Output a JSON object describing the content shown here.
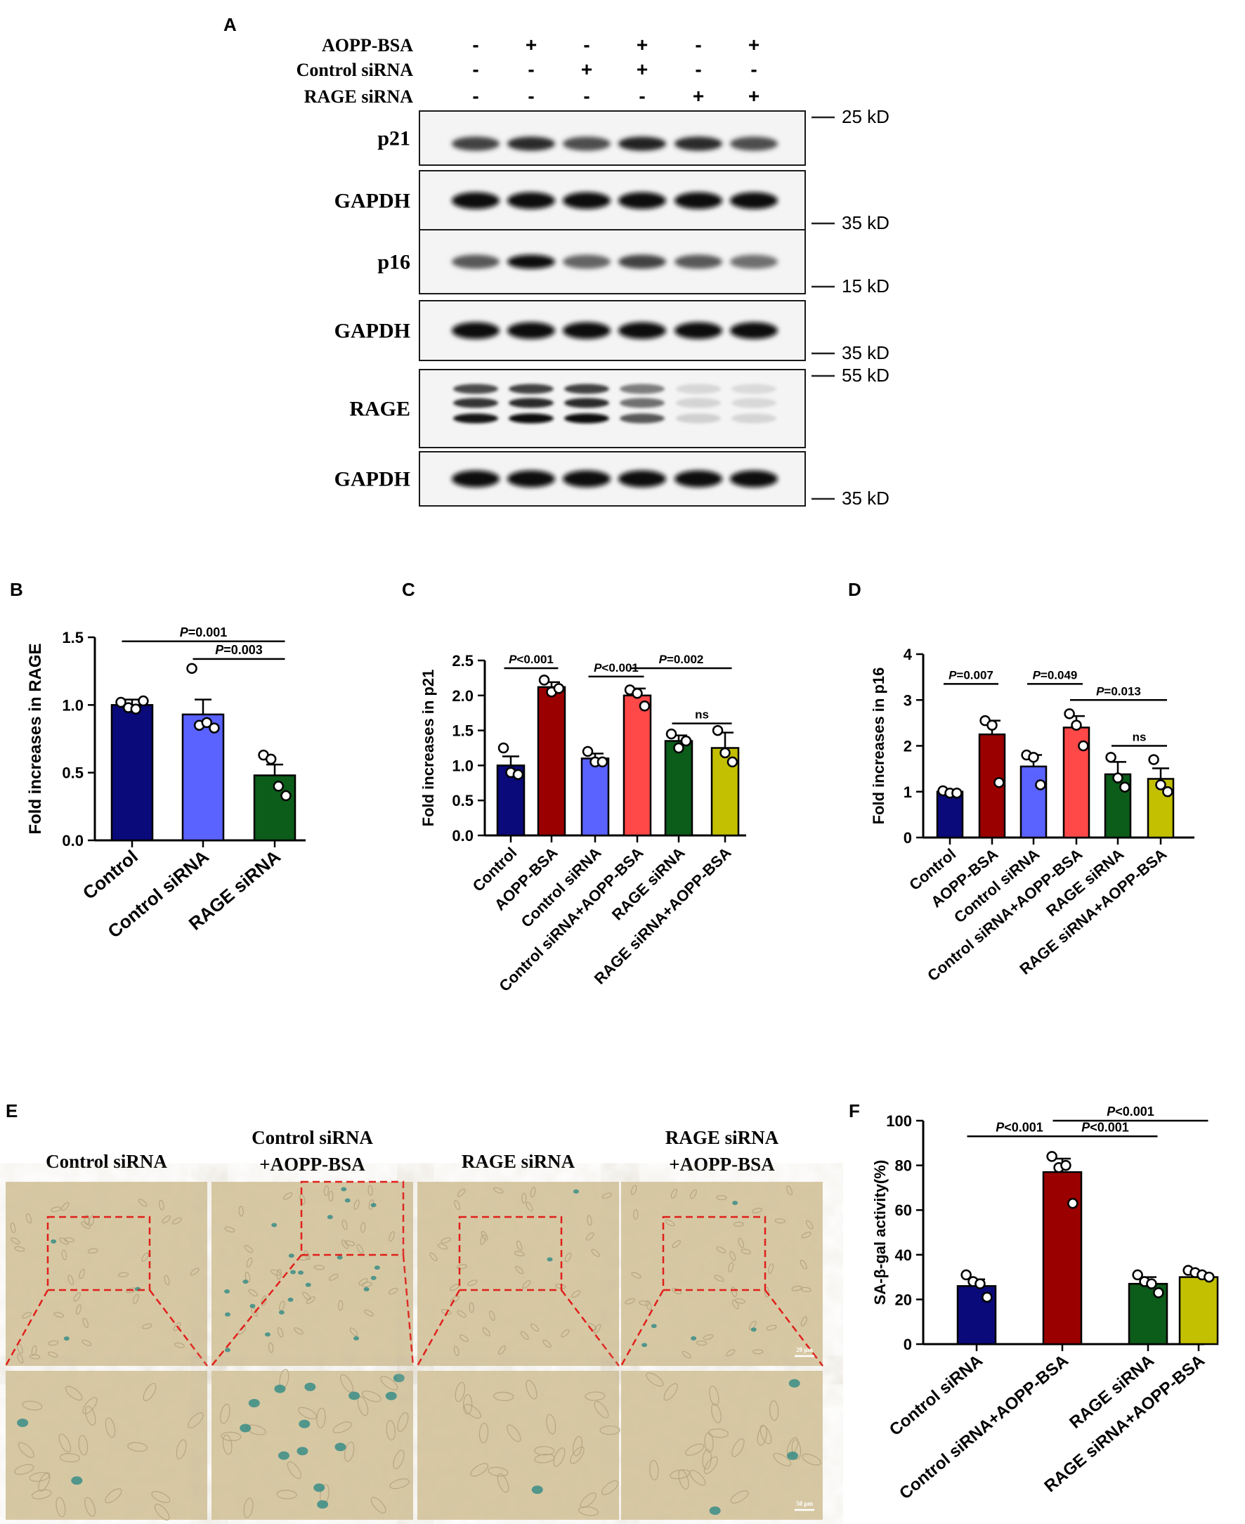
{
  "panelA": {
    "letter": "A",
    "treatments": [
      {
        "label": "AOPP-BSA",
        "signs": [
          "-",
          "+",
          "-",
          "+",
          "-",
          "+"
        ]
      },
      {
        "label": "Control siRNA",
        "signs": [
          "-",
          "-",
          "+",
          "+",
          "-",
          "-"
        ]
      },
      {
        "label": "RAGE siRNA",
        "signs": [
          "-",
          "-",
          "-",
          "-",
          "+",
          "+"
        ]
      }
    ],
    "blots": [
      {
        "label": "p21",
        "marker": "25 kD",
        "marker_pos": "top",
        "intensity": [
          0.75,
          0.85,
          0.7,
          0.9,
          0.85,
          0.7
        ],
        "style": "single"
      },
      {
        "label": "GAPDH",
        "marker": "35 kD",
        "marker_pos": "bottom",
        "intensity": [
          1,
          1,
          1,
          1,
          1,
          1
        ],
        "style": "single"
      },
      {
        "label": "p16",
        "marker": "15 kD",
        "marker_pos": "bottom",
        "intensity": [
          0.65,
          1,
          0.6,
          0.75,
          0.65,
          0.55
        ],
        "style": "single"
      },
      {
        "label": "GAPDH",
        "marker": "35 kD",
        "marker_pos": "bottom",
        "intensity": [
          1,
          1,
          1,
          1,
          1,
          1
        ],
        "style": "single"
      },
      {
        "label": "RAGE",
        "marker": "55 kD",
        "marker_pos": "top",
        "intensity": [
          0.95,
          1,
          1,
          0.65,
          0.12,
          0.1
        ],
        "style": "multi"
      },
      {
        "label": "GAPDH",
        "marker": "35 kD",
        "marker_pos": "bottom",
        "intensity": [
          1,
          1,
          1,
          1,
          1,
          1
        ],
        "style": "single"
      }
    ]
  },
  "panelB": {
    "letter": "B",
    "chart_data": {
      "type": "bar",
      "ylabel": "Fold increases in RAGE",
      "ylim": [
        0,
        1.5
      ],
      "yticks": [
        "0.0",
        "0.5",
        "1.0",
        "1.5"
      ],
      "categories": [
        "Control",
        "Control siRNA",
        "RAGE siRNA"
      ],
      "values": [
        1.0,
        0.93,
        0.48
      ],
      "errors": [
        0.04,
        0.11,
        0.08
      ],
      "colors": [
        "#0a0a7a",
        "#5a62ff",
        "#0c5c1a"
      ],
      "points": [
        [
          1.02,
          0.98,
          0.97,
          1.03
        ],
        [
          1.27,
          0.85,
          0.87,
          0.83
        ],
        [
          0.63,
          0.6,
          0.4,
          0.33
        ]
      ],
      "comparisons": [
        {
          "a": 0,
          "b": 2,
          "level": 1.47,
          "label": "P=0.001"
        },
        {
          "a": 1,
          "b": 2,
          "level": 1.34,
          "label": "P=0.003"
        }
      ]
    }
  },
  "panelC": {
    "letter": "C",
    "chart_data": {
      "type": "bar",
      "ylabel": "Fold increases in p21",
      "ylim": [
        0,
        2.5
      ],
      "yticks": [
        "0.0",
        "0.5",
        "1.0",
        "1.5",
        "2.0",
        "2.5"
      ],
      "categories": [
        "Control",
        "AOPP-BSA",
        "Control siRNA",
        "Control siRNA+AOPP-BSA",
        "RAGE siRNA",
        "RAGE siRNA+AOPP-BSA"
      ],
      "values": [
        1.0,
        2.12,
        1.1,
        2.0,
        1.35,
        1.25
      ],
      "errors": [
        0.13,
        0.07,
        0.07,
        0.1,
        0.08,
        0.22
      ],
      "colors": [
        "#0a0a7a",
        "#9b0000",
        "#5a62ff",
        "#ff4848",
        "#0c5c1a",
        "#c2c000"
      ],
      "points": [
        [
          1.25,
          0.9,
          0.87
        ],
        [
          2.22,
          2.05,
          2.1
        ],
        [
          1.2,
          1.05,
          1.05
        ],
        [
          2.08,
          2.03,
          1.85
        ],
        [
          1.45,
          1.25,
          1.35
        ],
        [
          1.5,
          1.18,
          1.05
        ]
      ],
      "comparisons": [
        {
          "a": 0,
          "b": 1,
          "level": 2.39,
          "label": "P<0.001"
        },
        {
          "a": 2,
          "b": 3,
          "level": 2.27,
          "label": "P<0.001"
        },
        {
          "a": 3,
          "b": 5,
          "level": 2.39,
          "label": "P=0.002"
        },
        {
          "a": 4,
          "b": 5,
          "level": 1.6,
          "label": "ns"
        }
      ]
    }
  },
  "panelD": {
    "letter": "D",
    "chart_data": {
      "type": "bar",
      "ylabel": "Fold increases in p16",
      "ylim": [
        0,
        4
      ],
      "yticks": [
        "0",
        "1",
        "2",
        "3",
        "4"
      ],
      "categories": [
        "Control",
        "AOPP-BSA",
        "Control siRNA",
        "Control siRNA+AOPP-BSA",
        "RAGE siRNA",
        "RAGE siRNA+AOPP-BSA"
      ],
      "values": [
        1.0,
        2.25,
        1.55,
        2.4,
        1.38,
        1.28
      ],
      "errors": [
        0.04,
        0.3,
        0.25,
        0.25,
        0.27,
        0.23
      ],
      "colors": [
        "#0a0a7a",
        "#9b0000",
        "#5a62ff",
        "#ff4848",
        "#0c5c1a",
        "#c2c000"
      ],
      "points": [
        [
          1.02,
          0.97,
          0.97
        ],
        [
          2.55,
          2.45,
          1.2
        ],
        [
          1.8,
          1.75,
          1.15
        ],
        [
          2.7,
          2.45,
          2.0
        ],
        [
          1.75,
          1.3,
          1.1
        ],
        [
          1.7,
          1.15,
          1.0
        ]
      ],
      "comparisons": [
        {
          "a": 0,
          "b": 1,
          "level": 3.35,
          "label": "P=0.007"
        },
        {
          "a": 2,
          "b": 3,
          "level": 3.35,
          "label": "P=0.049"
        },
        {
          "a": 3,
          "b": 5,
          "level": 3.0,
          "label": "P=0.013"
        },
        {
          "a": 4,
          "b": 5,
          "level": 2.0,
          "label": "ns"
        }
      ]
    }
  },
  "panelE": {
    "letter": "E",
    "columns": [
      "Control siRNA",
      "Control siRNA\n+AOPP-BSA",
      "RAGE siRNA",
      "RAGE siRNA\n+AOPP-BSA"
    ],
    "blue_cells": [
      3,
      22,
      2,
      5
    ],
    "scale_top": "20 μm",
    "scale_bottom": "50 μm"
  },
  "panelF": {
    "letter": "F",
    "chart_data": {
      "type": "bar",
      "ylabel": "SA-β-gal activity(%)",
      "ylim": [
        0,
        100
      ],
      "yticks": [
        "0",
        "20",
        "40",
        "60",
        "80",
        "100"
      ],
      "categories": [
        "Control siRNA",
        "Control siRNA+AOPP-BSA",
        "RAGE siRNA",
        "RAGE siRNA+AOPP-BSA"
      ],
      "values": [
        26,
        77,
        27,
        30
      ],
      "errors": [
        3,
        6,
        3,
        2
      ],
      "colors": [
        "#0a0a7a",
        "#9b0000",
        "#0c5c1a",
        "#c2c000"
      ],
      "points": [
        [
          31,
          28,
          27,
          21
        ],
        [
          84,
          79,
          80,
          63
        ],
        [
          31,
          28,
          27,
          23
        ],
        [
          33,
          32,
          31,
          30
        ]
      ],
      "comparisons": [
        {
          "a": 0,
          "b": 1,
          "level": 93,
          "label": "P<0.001"
        },
        {
          "a": 1,
          "b": 2,
          "level": 93,
          "label": "P<0.001"
        },
        {
          "a": 1,
          "b": 3,
          "level": 100,
          "label": "P<0.001"
        }
      ]
    }
  }
}
